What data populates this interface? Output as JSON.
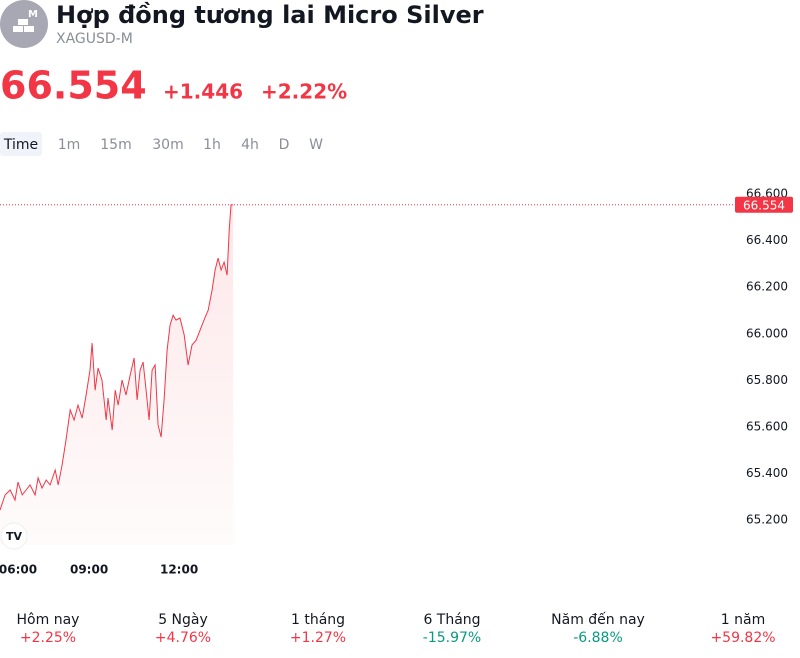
{
  "header": {
    "title": "Hợp đồng tương lai Micro Silver",
    "symbol": "XAGUSD-M",
    "change": "+1.446",
    "change_percent": "+2.22%"
  },
  "tabs": [
    "Time",
    "1m",
    "15m",
    "30m",
    "1h",
    "4h",
    "D",
    "W"
  ],
  "chart_data": {
    "type": "line",
    "color": "#f23645",
    "x": [
      6.03,
      6.2,
      6.37,
      6.53,
      6.63,
      6.77,
      6.9,
      7.03,
      7.2,
      7.3,
      7.43,
      7.57,
      7.7,
      7.87,
      7.97,
      8.1,
      8.23,
      8.37,
      8.5,
      8.63,
      8.77,
      8.9,
      9.03,
      9.1,
      9.2,
      9.3,
      9.43,
      9.57,
      9.63,
      9.77,
      9.87,
      9.97,
      10.1,
      10.23,
      10.37,
      10.5,
      10.6,
      10.7,
      10.8,
      10.9,
      11,
      11.1,
      11.2,
      11.3,
      11.4,
      11.5,
      11.6,
      11.7,
      11.8,
      11.9,
      12.03,
      12.17,
      12.3,
      12.43,
      12.57,
      12.7,
      12.83,
      12.97,
      13.1,
      13.2,
      13.3,
      13.4,
      13.5,
      13.6,
      13.67,
      13.73,
      13.8
    ],
    "values": [
      65.243,
      65.308,
      65.329,
      65.286,
      65.363,
      65.308,
      65.329,
      65.351,
      65.308,
      65.381,
      65.338,
      65.372,
      65.351,
      65.415,
      65.351,
      65.436,
      65.544,
      65.673,
      65.63,
      65.694,
      65.638,
      65.737,
      65.844,
      65.96,
      65.758,
      65.853,
      65.801,
      65.63,
      65.724,
      65.587,
      65.758,
      65.694,
      65.801,
      65.737,
      65.823,
      65.896,
      65.716,
      65.844,
      65.879,
      65.758,
      65.63,
      65.844,
      65.866,
      65.608,
      65.557,
      65.716,
      65.93,
      66.038,
      66.08,
      66.059,
      66.068,
      65.995,
      65.866,
      65.952,
      65.973,
      66.016,
      66.059,
      66.102,
      66.188,
      66.274,
      66.325,
      66.274,
      66.308,
      66.252,
      66.445,
      66.553,
      66.554
    ],
    "xlim": [
      6.03,
      30.53
    ],
    "xticks": [
      {
        "value": 6,
        "label": "06:00"
      },
      {
        "value": 9,
        "label": "09:00"
      },
      {
        "value": 12,
        "label": "12:00"
      }
    ],
    "ylim": [
      65.093,
      66.682
    ],
    "yticks": [
      {
        "value": 65.2,
        "label": "65.200"
      },
      {
        "value": 65.4,
        "label": "65.400"
      },
      {
        "value": 65.6,
        "label": "65.600"
      },
      {
        "value": 65.8,
        "label": "65.800"
      },
      {
        "value": 66.0,
        "label": "66.000"
      },
      {
        "value": 66.2,
        "label": "66.200"
      },
      {
        "value": 66.4,
        "label": "66.400"
      },
      {
        "value": 66.6,
        "label": "66.600"
      }
    ],
    "last_price": {
      "value": 66.554,
      "label": "66.554"
    }
  },
  "performance": [
    {
      "label": "Hôm nay",
      "value": "+2.25%"
    },
    {
      "label": "5 Ngày",
      "value": "+4.76%"
    },
    {
      "label": "1 tháng",
      "value": "+1.27%"
    },
    {
      "label": "6 Tháng",
      "value": "-15.97%"
    },
    {
      "label": "Năm đến nay",
      "value": "-6.88%"
    },
    {
      "label": "1 năm",
      "value": "+59.82%"
    }
  ]
}
